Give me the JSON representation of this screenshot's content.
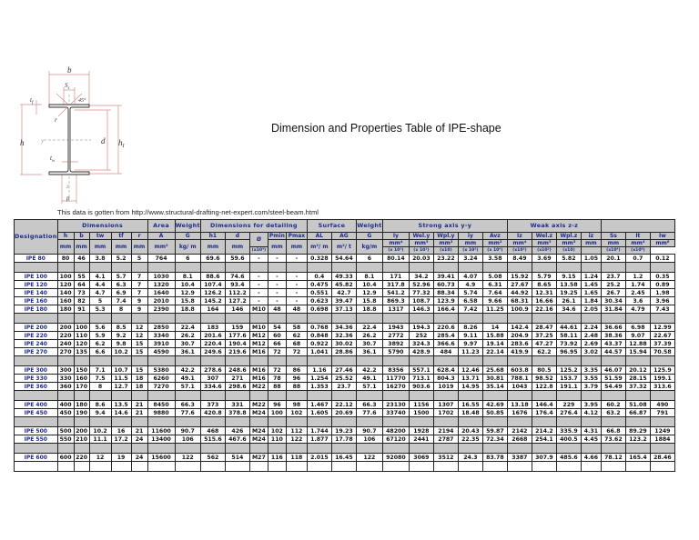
{
  "title": "Dimension and Properties Table of IPE-shape",
  "source_note": "This data is gotten from http://www.structural-drafting-net-expert.com/steel-beam.html",
  "diagram": {
    "labels": [
      "b",
      "Ss",
      "45°",
      "tf",
      "r",
      "h",
      "y",
      "d",
      "h1",
      "tw",
      "z",
      "p"
    ]
  },
  "colors": {
    "header_bg": "#c8c8c8",
    "header_text": "#1e2a8a",
    "border": "#222222"
  },
  "table": {
    "groups": {
      "designation": "Designation",
      "dimensions": "Dimensions",
      "area": "Area",
      "weight": "Weight",
      "detailing": "Dimensions for detailing",
      "surface": "Surface",
      "weight2": "Weight",
      "strong": "Strong axis y-y",
      "weak": "Weak axis z-z"
    },
    "symbols": {
      "h": "h",
      "b": "b",
      "tw": "tw",
      "tf": "tf",
      "r": "r",
      "A": "A",
      "G": "G",
      "h1": "h1",
      "d": "d",
      "phi": "Ø",
      "pmin": "Pmin",
      "pmax": "Pmax",
      "AL": "AL",
      "AG": "AG",
      "G2": "G",
      "Iy": "Iy",
      "Wely": "Wel.y",
      "Wply": "Wpl.y",
      "iy": "iy",
      "Avz": "Avz",
      "Iz": "Iz",
      "Welz": "Wel.z",
      "Wplz": "Wpl.z",
      "iz": "iz",
      "Ss": "Ss",
      "It": "It",
      "Iw": "Iw"
    },
    "units": {
      "h": "mm",
      "b": "mm",
      "tw": "mm",
      "tf": "mm",
      "r": "mm",
      "A": "mm²",
      "G": "kg/ m",
      "h1": "mm",
      "d": "mm",
      "pmin": "mm",
      "pmax": "mm",
      "AL": "m²/ m",
      "AG": "m²/ t",
      "G2": "kg/m",
      "Iy": "mm⁴",
      "Wely": "mm³",
      "Wply": "mm³",
      "iy": "mm",
      "Avz": "mm²",
      "Iz": "mm⁴",
      "Welz": "mm³",
      "Wplz": "mm³",
      "iz": "mm",
      "Ss": "mm",
      "It": "mm⁴",
      "Iw": "mm⁶"
    },
    "multipliers": {
      "Iy": "(x10⁴)",
      "Wely": "(x 10³)",
      "Wply": "(x 10³)",
      "iy": "(x10)",
      "Avz": "(x 10²)",
      "Iz": "(x 10⁴)",
      "Welz": "(x10³)",
      "Wplz": "(x10³)",
      "iz": "(x10)",
      "Ss": "",
      "It": "(x10⁴)",
      "Iw": "(x10⁹)"
    },
    "rows": [
      {
        "type": "data",
        "name": "IPE 80",
        "v": [
          "80",
          "46",
          "3.8",
          "5.2",
          "5",
          "764",
          "6",
          "69.6",
          "59.6",
          "-",
          "-",
          "-",
          "0.328",
          "54.64",
          "6",
          "80.14",
          "20.03",
          "23.22",
          "3.24",
          "3.58",
          "8.49",
          "3.69",
          "5.82",
          "1.05",
          "20.1",
          "0.7",
          "0.12"
        ]
      },
      {
        "type": "spacer"
      },
      {
        "type": "data",
        "name": "IPE 100",
        "v": [
          "100",
          "55",
          "4.1",
          "5.7",
          "7",
          "1030",
          "8.1",
          "88.6",
          "74.6",
          "-",
          "-",
          "-",
          "0.4",
          "49.33",
          "8.1",
          "171",
          "34.2",
          "39.41",
          "4.07",
          "5.08",
          "15.92",
          "5.79",
          "9.15",
          "1.24",
          "23.7",
          "1.2",
          "0.35"
        ]
      },
      {
        "type": "data",
        "name": "IPE 120",
        "v": [
          "120",
          "64",
          "4.4",
          "6.3",
          "7",
          "1320",
          "10.4",
          "107.4",
          "93.4",
          "-",
          "-",
          "-",
          "0.475",
          "45.82",
          "10.4",
          "317.8",
          "52.96",
          "60.73",
          "4.9",
          "6.31",
          "27.67",
          "8.65",
          "13.58",
          "1.45",
          "25.2",
          "1.74",
          "0.89"
        ]
      },
      {
        "type": "data",
        "name": "IPE 140",
        "v": [
          "140",
          "73",
          "4.7",
          "6.9",
          "7",
          "1640",
          "12.9",
          "126.2",
          "112.2",
          "-",
          "-",
          "-",
          "0.551",
          "42.7",
          "12.9",
          "541.2",
          "77.32",
          "88.34",
          "5.74",
          "7.64",
          "44.92",
          "12.31",
          "19.25",
          "1.65",
          "26.7",
          "2.45",
          "1.98"
        ]
      },
      {
        "type": "data",
        "name": "IPE 160",
        "v": [
          "160",
          "82",
          "5",
          "7.4",
          "9",
          "2010",
          "15.8",
          "145.2",
          "127.2",
          "-",
          "-",
          "-",
          "0.623",
          "39.47",
          "15.8",
          "869.3",
          "108.7",
          "123.9",
          "6.58",
          "9.66",
          "68.31",
          "16.66",
          "26.1",
          "1.84",
          "30.34",
          "3.6",
          "3.96"
        ]
      },
      {
        "type": "data",
        "name": "IPE 180",
        "v": [
          "180",
          "91",
          "5.3",
          "8",
          "9",
          "2390",
          "18.8",
          "164",
          "146",
          "M10",
          "48",
          "48",
          "0.698",
          "37.13",
          "18.8",
          "1317",
          "146.3",
          "166.4",
          "7.42",
          "11.25",
          "100.9",
          "22.16",
          "34.6",
          "2.05",
          "31.84",
          "4.79",
          "7.43"
        ]
      },
      {
        "type": "spacer"
      },
      {
        "type": "data",
        "name": "IPE 200",
        "v": [
          "200",
          "100",
          "5.6",
          "8.5",
          "12",
          "2850",
          "22.4",
          "183",
          "159",
          "M10",
          "54",
          "58",
          "0.768",
          "34.36",
          "22.4",
          "1943",
          "194.3",
          "220.6",
          "8.26",
          "14",
          "142.4",
          "28.47",
          "44.61",
          "2.24",
          "36.66",
          "6.98",
          "12.99"
        ]
      },
      {
        "type": "data",
        "name": "IPE 220",
        "v": [
          "220",
          "110",
          "5.9",
          "9.2",
          "12",
          "3340",
          "26.2",
          "201.6",
          "177.6",
          "M12",
          "60",
          "62",
          "0.848",
          "32.36",
          "26.2",
          "2772",
          "252",
          "285.4",
          "9.11",
          "15.88",
          "204.9",
          "37.25",
          "58.11",
          "2.48",
          "38.36",
          "9.07",
          "22.67"
        ]
      },
      {
        "type": "data",
        "name": "IPE 240",
        "v": [
          "240",
          "120",
          "6.2",
          "9.8",
          "15",
          "3910",
          "30.7",
          "220.4",
          "190.4",
          "M12",
          "66",
          "68",
          "0.922",
          "30.02",
          "30.7",
          "3892",
          "324.3",
          "366.6",
          "9.97",
          "19.14",
          "283.6",
          "47.27",
          "73.92",
          "2.69",
          "43.37",
          "12.88",
          "37.39"
        ]
      },
      {
        "type": "data",
        "name": "IPE 270",
        "v": [
          "270",
          "135",
          "6.6",
          "10.2",
          "15",
          "4590",
          "36.1",
          "249.6",
          "219.6",
          "M16",
          "72",
          "72",
          "1.041",
          "28.86",
          "36.1",
          "5790",
          "428.9",
          "484",
          "11.23",
          "22.14",
          "419.9",
          "62.2",
          "96.95",
          "3.02",
          "44.57",
          "15.94",
          "70.58"
        ]
      },
      {
        "type": "spacer"
      },
      {
        "type": "data",
        "name": "IPE 300",
        "v": [
          "300",
          "150",
          "7.1",
          "10.7",
          "15",
          "5380",
          "42.2",
          "278.6",
          "248.6",
          "M16",
          "72",
          "86",
          "1.16",
          "27.46",
          "42.2",
          "8356",
          "557.1",
          "628.4",
          "12.46",
          "25.68",
          "603.8",
          "80.5",
          "125.2",
          "3.35",
          "46.07",
          "20.12",
          "125.9"
        ]
      },
      {
        "type": "data",
        "name": "IPE 330",
        "v": [
          "330",
          "160",
          "7.5",
          "11.5",
          "18",
          "6260",
          "49.1",
          "307",
          "271",
          "M16",
          "78",
          "96",
          "1.254",
          "25.52",
          "49.1",
          "11770",
          "713.1",
          "804.3",
          "13.71",
          "30.81",
          "788.1",
          "98.52",
          "153.7",
          "3.55",
          "51.59",
          "28.15",
          "199.1"
        ]
      },
      {
        "type": "data",
        "name": "IPE 360",
        "v": [
          "360",
          "170",
          "8",
          "12.7",
          "18",
          "7270",
          "57.1",
          "334.6",
          "298.6",
          "M22",
          "88",
          "88",
          "1.353",
          "23.7",
          "57.1",
          "16270",
          "903.6",
          "1019",
          "14.95",
          "35.14",
          "1043",
          "122.8",
          "191.1",
          "3.79",
          "54.49",
          "37.32",
          "313.6"
        ]
      },
      {
        "type": "spacer"
      },
      {
        "type": "data",
        "name": "IPE 400",
        "v": [
          "400",
          "180",
          "8.6",
          "13.5",
          "21",
          "8450",
          "66.3",
          "373",
          "331",
          "M22",
          "96",
          "98",
          "1.467",
          "22.12",
          "66.3",
          "23130",
          "1156",
          "1307",
          "16.55",
          "42.69",
          "13.18",
          "146.4",
          "229",
          "3.95",
          "60.2",
          "51.08",
          "490"
        ]
      },
      {
        "type": "data",
        "name": "IPE 450",
        "v": [
          "450",
          "190",
          "9.4",
          "14.6",
          "21",
          "9880",
          "77.6",
          "420.8",
          "378.8",
          "M24",
          "100",
          "102",
          "1.605",
          "20.69",
          "77.6",
          "33740",
          "1500",
          "1702",
          "18.48",
          "50.85",
          "1676",
          "176.4",
          "276.4",
          "4.12",
          "63.2",
          "66.87",
          "791"
        ]
      },
      {
        "type": "spacer"
      },
      {
        "type": "data",
        "name": "IPE 500",
        "v": [
          "500",
          "200",
          "10.2",
          "16",
          "21",
          "11600",
          "90.7",
          "468",
          "426",
          "M24",
          "102",
          "112",
          "1.744",
          "19.23",
          "90.7",
          "48200",
          "1928",
          "2194",
          "20.43",
          "59.87",
          "2142",
          "214.2",
          "335.9",
          "4.31",
          "66.8",
          "89.29",
          "1249"
        ]
      },
      {
        "type": "data",
        "name": "IPE 550",
        "v": [
          "550",
          "210",
          "11.1",
          "17.2",
          "24",
          "13400",
          "106",
          "515.6",
          "467.6",
          "M24",
          "110",
          "122",
          "1.877",
          "17.78",
          "106",
          "67120",
          "2441",
          "2787",
          "22.35",
          "72.34",
          "2668",
          "254.1",
          "400.5",
          "4.45",
          "73.62",
          "123.2",
          "1884"
        ]
      },
      {
        "type": "spacer"
      },
      {
        "type": "data",
        "name": "IPE 600",
        "v": [
          "600",
          "220",
          "12",
          "19",
          "24",
          "15600",
          "122",
          "562",
          "514",
          "M27",
          "116",
          "118",
          "2.015",
          "16.45",
          "122",
          "92080",
          "3069",
          "3512",
          "24.3",
          "83.78",
          "3387",
          "307.9",
          "485.6",
          "4.66",
          "78.12",
          "165.4",
          "28.46"
        ]
      },
      {
        "type": "blank"
      }
    ]
  }
}
